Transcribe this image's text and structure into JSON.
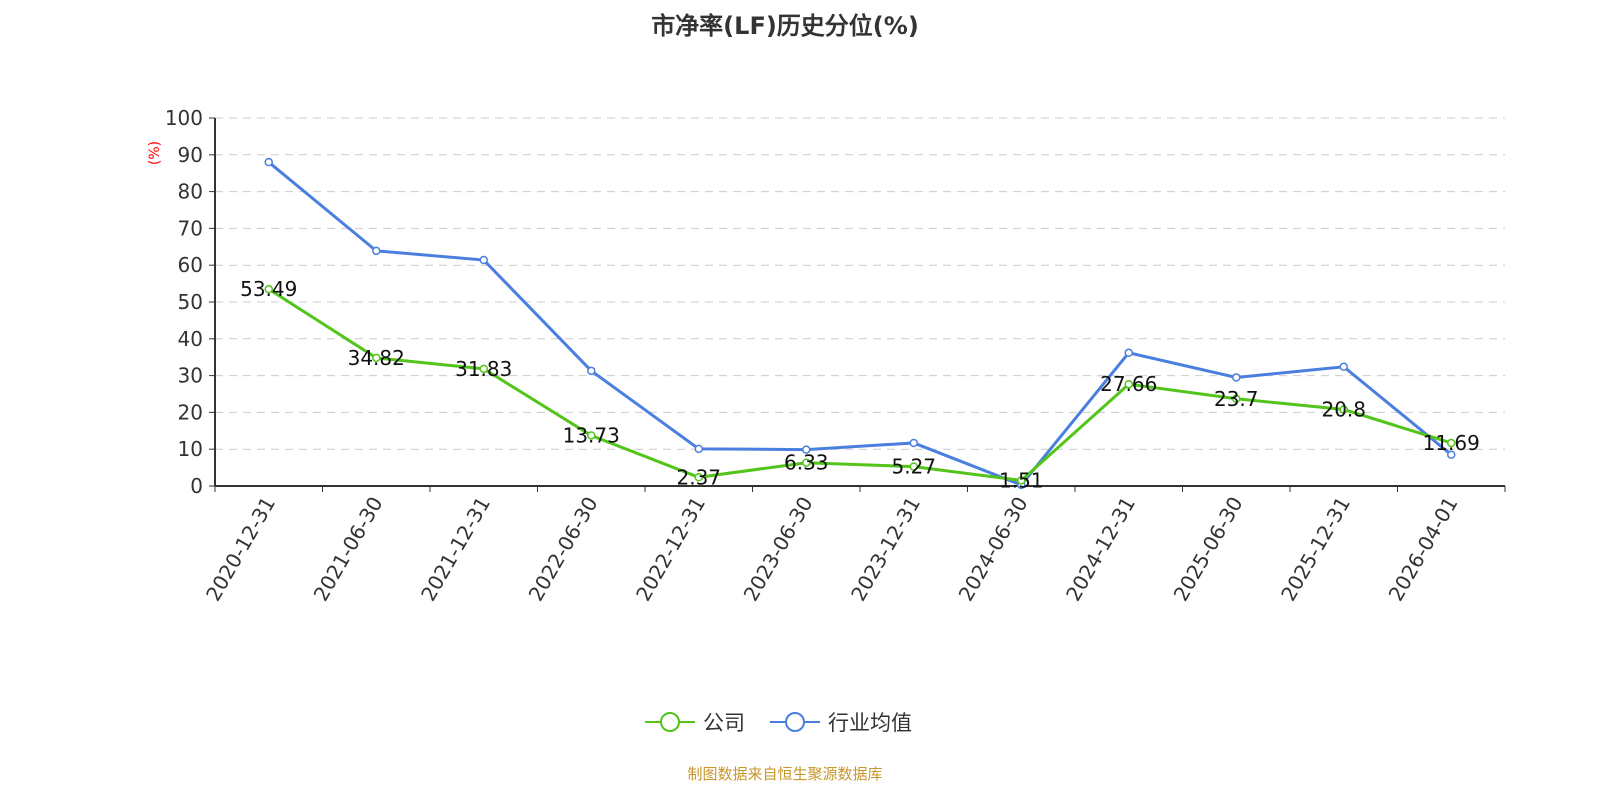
{
  "chart_data": {
    "type": "line",
    "title": "市净率(LF)历史分位(%)",
    "ylabel": "(%)",
    "ylim": [
      0,
      100
    ],
    "yticks": [
      0,
      10,
      20,
      30,
      40,
      50,
      60,
      70,
      80,
      90,
      100
    ],
    "grid": true,
    "legend_position": "bottom",
    "categories": [
      "2020-12-31",
      "2021-06-30",
      "2021-12-31",
      "2022-06-30",
      "2022-12-31",
      "2023-06-30",
      "2023-12-31",
      "2024-06-30",
      "2024-12-31",
      "2025-06-30",
      "2025-12-31",
      "2026-04-01"
    ],
    "series": [
      {
        "name": "公司",
        "color": "#52c41a",
        "values": [
          53.49,
          34.82,
          31.83,
          13.73,
          2.37,
          6.33,
          5.27,
          1.51,
          27.66,
          23.7,
          20.8,
          11.69
        ],
        "labels": true
      },
      {
        "name": "行业均值",
        "color": "#4a7fe0",
        "values": [
          88.0,
          63.9,
          61.4,
          31.3,
          10.1,
          9.9,
          11.7,
          0.3,
          36.2,
          29.5,
          32.4,
          8.5
        ],
        "labels": false
      }
    ]
  },
  "source": "制图数据来自恒生聚源数据库"
}
